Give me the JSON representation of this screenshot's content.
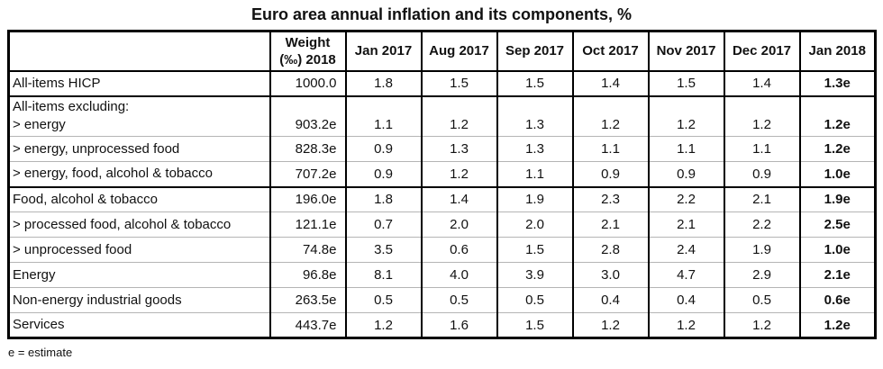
{
  "title": "Euro area annual inflation and its components, %",
  "footnote": "e = estimate",
  "chart_data": {
    "type": "table",
    "title": "Euro area annual inflation and its components, %",
    "weight_header": "Weight\n(‰) 2018",
    "month_headers": [
      "Jan 2017",
      "Aug 2017",
      "Sep 2017",
      "Oct 2017",
      "Nov 2017",
      "Dec 2017",
      "Jan 2018"
    ],
    "rows": [
      {
        "label": "All-items HICP",
        "label2": "",
        "weight": "1000.0",
        "values": [
          "1.8",
          "1.5",
          "1.5",
          "1.4",
          "1.5",
          "1.4",
          "1.3e"
        ]
      },
      {
        "label": "All-items excluding:",
        "label2": "> energy",
        "weight": "903.2e",
        "values": [
          "1.1",
          "1.2",
          "1.3",
          "1.2",
          "1.2",
          "1.2",
          "1.2e"
        ]
      },
      {
        "label": "> energy, unprocessed food",
        "label2": "",
        "weight": "828.3e",
        "values": [
          "0.9",
          "1.3",
          "1.3",
          "1.1",
          "1.1",
          "1.1",
          "1.2e"
        ]
      },
      {
        "label": "> energy, food, alcohol & tobacco",
        "label2": "",
        "weight": "707.2e",
        "values": [
          "0.9",
          "1.2",
          "1.1",
          "0.9",
          "0.9",
          "0.9",
          "1.0e"
        ]
      },
      {
        "label": "Food, alcohol & tobacco",
        "label2": "",
        "weight": "196.0e",
        "values": [
          "1.8",
          "1.4",
          "1.9",
          "2.3",
          "2.2",
          "2.1",
          "1.9e"
        ]
      },
      {
        "label": "> processed food, alcohol & tobacco",
        "label2": "",
        "weight": "121.1e",
        "values": [
          "0.7",
          "2.0",
          "2.0",
          "2.1",
          "2.1",
          "2.2",
          "2.5e"
        ]
      },
      {
        "label": "> unprocessed food",
        "label2": "",
        "weight": "74.8e",
        "values": [
          "3.5",
          "0.6",
          "1.5",
          "2.8",
          "2.4",
          "1.9",
          "1.0e"
        ]
      },
      {
        "label": "Energy",
        "label2": "",
        "weight": "96.8e",
        "values": [
          "8.1",
          "4.0",
          "3.9",
          "3.0",
          "4.7",
          "2.9",
          "2.1e"
        ]
      },
      {
        "label": "Non-energy industrial goods",
        "label2": "",
        "weight": "263.5e",
        "values": [
          "0.5",
          "0.5",
          "0.5",
          "0.4",
          "0.4",
          "0.5",
          "0.6e"
        ]
      },
      {
        "label": "Services",
        "label2": "",
        "weight": "443.7e",
        "values": [
          "1.2",
          "1.6",
          "1.5",
          "1.2",
          "1.2",
          "1.2",
          "1.2e"
        ]
      }
    ],
    "layout": {
      "group_separator_rows": [
        1,
        4
      ],
      "border_color": "#000000",
      "thin_line_color": "#b5b5b5",
      "last_column_bold": true
    }
  }
}
